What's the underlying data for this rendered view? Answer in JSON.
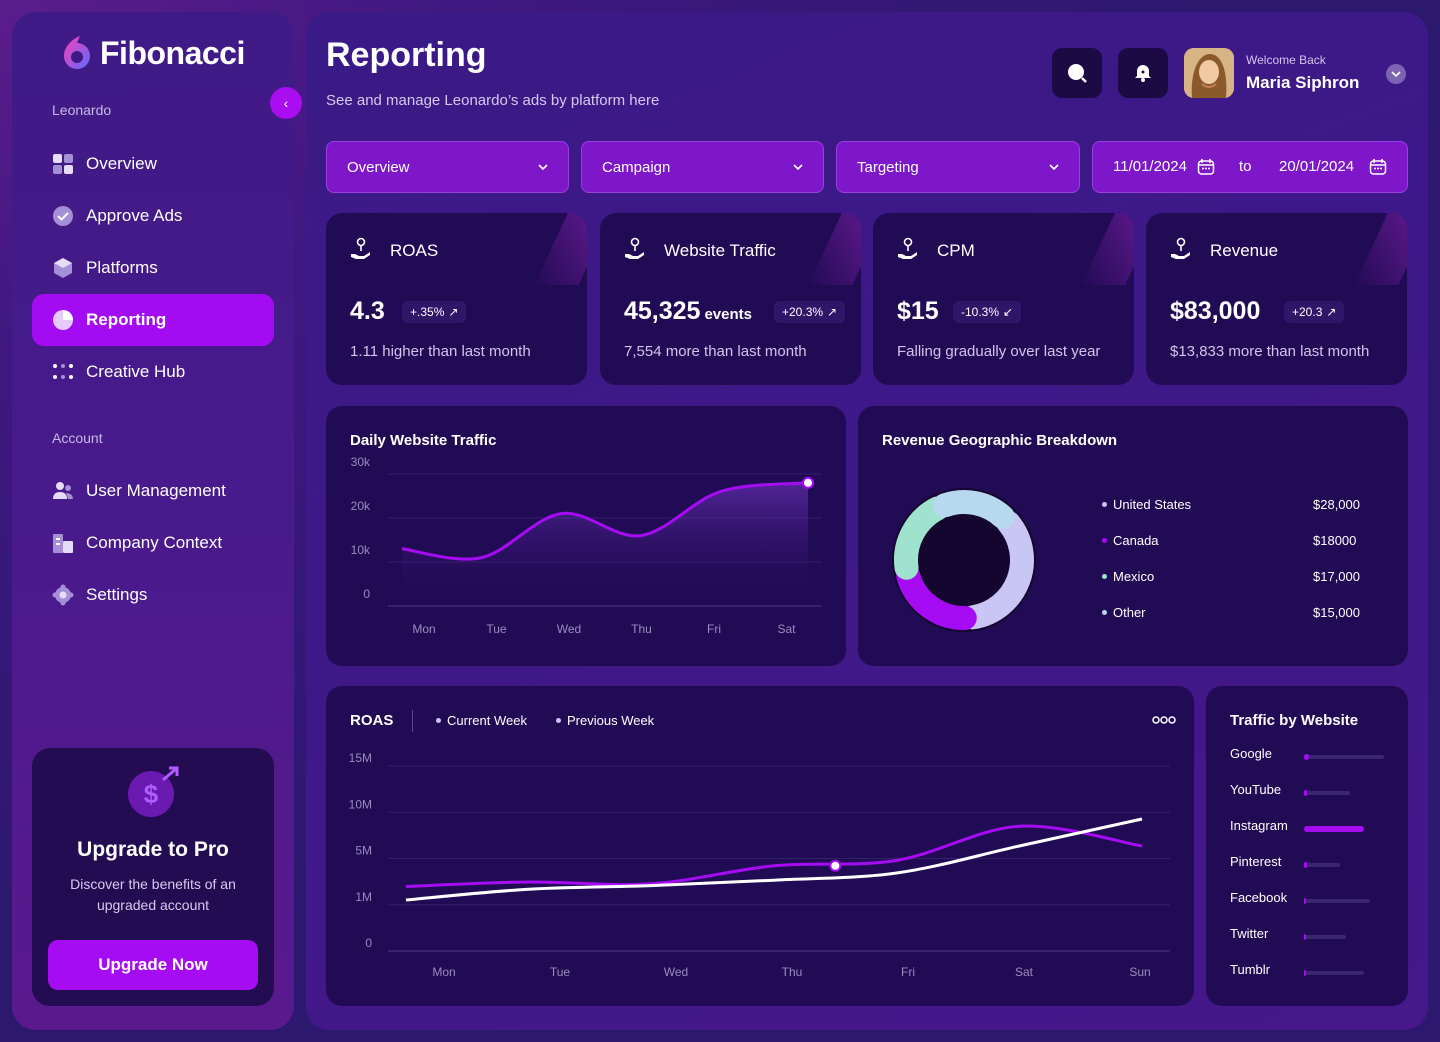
{
  "app": {
    "name": "Fibonacci",
    "workspace": "Leonardo"
  },
  "sidebar": {
    "items": [
      {
        "label": "Overview",
        "icon": "grid-icon"
      },
      {
        "label": "Approve Ads",
        "icon": "check-circle-icon"
      },
      {
        "label": "Platforms",
        "icon": "cube-icon"
      },
      {
        "label": "Reporting",
        "icon": "pie-chart-icon",
        "active": true
      },
      {
        "label": "Creative Hub",
        "icon": "dots-icon"
      }
    ],
    "account_label": "Account",
    "account_items": [
      {
        "label": "User Management",
        "icon": "users-icon"
      },
      {
        "label": "Company Context",
        "icon": "building-icon"
      },
      {
        "label": "Settings",
        "icon": "gear-icon"
      }
    ],
    "upgrade": {
      "title": "Upgrade to Pro",
      "description": "Discover the benefits of an upgraded account",
      "button": "Upgrade Now"
    }
  },
  "header": {
    "title": "Reporting",
    "subtitle": "See and manage Leonardo’s ads by platform here",
    "welcome": "Welcome Back",
    "user_name": "Maria Siphron"
  },
  "filters": {
    "overview": "Overview",
    "campaign": "Campaign",
    "targeting": "Targeting",
    "date_from": "11/01/2024",
    "date_sep": "to",
    "date_to": "20/01/2024"
  },
  "stats": [
    {
      "label": "ROAS",
      "value": "4.3",
      "unit": "",
      "change": "+.35%",
      "note": "1.11 higher than last month"
    },
    {
      "label": "Website Traffic",
      "value": "45,325",
      "unit": "events",
      "change": "+20.3%",
      "note": "7,554 more than last month"
    },
    {
      "label": "CPM",
      "value": "$15",
      "unit": "",
      "change": "-10.3%",
      "note": "Falling gradually over last year"
    },
    {
      "label": "Revenue",
      "value": "$83,000",
      "unit": "",
      "change": "+20.3",
      "note": "$13,833 more than last month"
    }
  ],
  "colors": {
    "accent": "#a50cf3",
    "card": "#220b55",
    "us": "#c9c5f5",
    "canada": "#a50cf3",
    "mexico": "#9fe3cf",
    "other": "#b8d8f0"
  },
  "chart_data": [
    {
      "type": "line",
      "title": "Daily Website Traffic",
      "categories": [
        "Mon",
        "Tue",
        "Wed",
        "Thu",
        "Fri",
        "Sat"
      ],
      "y_ticks": [
        "30k",
        "20k",
        "10k",
        "0"
      ],
      "ylim": [
        0,
        30000
      ],
      "series": [
        {
          "values": [
            13000,
            11000,
            21000,
            16000,
            26000,
            28000
          ]
        }
      ]
    },
    {
      "type": "pie",
      "title": "Revenue Geographic Breakdown",
      "labels": [
        "United States",
        "Canada",
        "Mexico",
        "Other"
      ],
      "value_labels": [
        "$28,000",
        "$18000",
        "$17,000",
        "$15,000"
      ],
      "values": [
        28000,
        18000,
        17000,
        15000
      ]
    },
    {
      "type": "line",
      "title": "ROAS",
      "categories": [
        "Mon",
        "Tue",
        "Wed",
        "Thu",
        "Fri",
        "Sat",
        "Sun"
      ],
      "y_ticks": [
        "15M",
        "10M",
        "5M",
        "1M",
        "0"
      ],
      "series": [
        {
          "name": "Current Week",
          "values": [
            2.5,
            3.0,
            2.8,
            4.8,
            5.4,
            9.2,
            7.0
          ]
        },
        {
          "name": "Previous Week",
          "values": [
            1.0,
            2.2,
            2.6,
            3.2,
            4.0,
            7.0,
            10.0
          ]
        }
      ]
    },
    {
      "type": "bar",
      "title": "Traffic by Website",
      "categories": [
        "Google",
        "YouTube",
        "Instagram",
        "Pinterest",
        "Facebook",
        "Twitter",
        "Tumblr"
      ],
      "values": [
        0.05,
        0.03,
        0.6,
        0.03,
        0.02,
        0.02,
        0.02
      ]
    }
  ]
}
